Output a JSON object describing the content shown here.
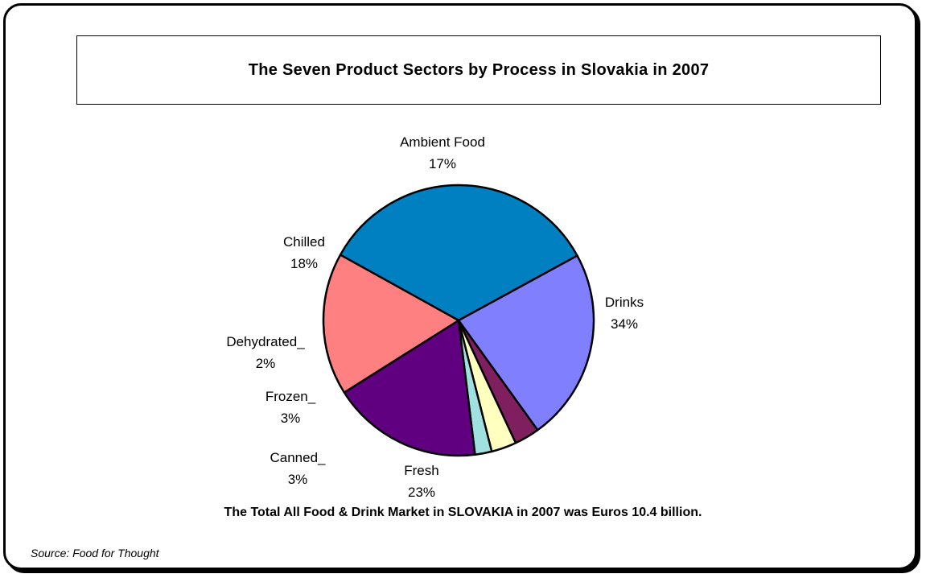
{
  "chart_data": {
    "type": "pie",
    "title": "The Seven Product Sectors by Process in Slovakia in 2007",
    "slices": [
      {
        "name": "Drinks",
        "value": 34,
        "label": "34%",
        "color": "#0080C0"
      },
      {
        "name": "Fresh",
        "value": 23,
        "label": "23%",
        "color": "#8080FF"
      },
      {
        "name": "Canned_",
        "value": 3,
        "label": "3%",
        "color": "#7F1F5F"
      },
      {
        "name": "Frozen_",
        "value": 3,
        "label": "3%",
        "color": "#FFFFC0"
      },
      {
        "name": "Dehydrated_",
        "value": 2,
        "label": "2%",
        "color": "#A0E0E0"
      },
      {
        "name": "Chilled",
        "value": 18,
        "label": "18%",
        "color": "#600080"
      },
      {
        "name": "Ambient Food",
        "value": 17,
        "label": "17%",
        "color": "#FF8080"
      }
    ],
    "start_slice": "Drinks",
    "direction": "clockwise",
    "legend": "none"
  },
  "footnote": "The Total All Food & Drink Market in SLOVAKIA in 2007 was Euros  10.4 billion.",
  "source": "Source: Food for Thought"
}
